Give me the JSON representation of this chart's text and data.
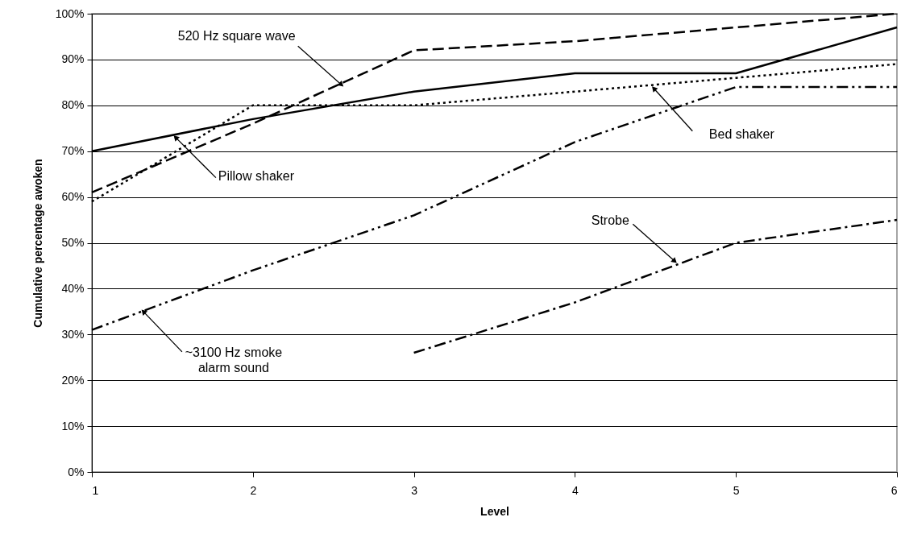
{
  "chart_data": {
    "type": "line",
    "xlabel": "Level",
    "ylabel": "Cumulative percentage awoken",
    "x": [
      1,
      2,
      3,
      4,
      5,
      6
    ],
    "xlim": [
      1,
      6
    ],
    "xticks": [
      1,
      2,
      3,
      4,
      5,
      6
    ],
    "ylim": [
      0,
      100
    ],
    "yticks": [
      {
        "value": 0,
        "label": "0%"
      },
      {
        "value": 10,
        "label": "10%"
      },
      {
        "value": 20,
        "label": "20%"
      },
      {
        "value": 30,
        "label": "30%"
      },
      {
        "value": 40,
        "label": "40%"
      },
      {
        "value": 50,
        "label": "50%"
      },
      {
        "value": 60,
        "label": "60%"
      },
      {
        "value": 70,
        "label": "70%"
      },
      {
        "value": 80,
        "label": "80%"
      },
      {
        "value": 90,
        "label": "90%"
      },
      {
        "value": 100,
        "label": "100%"
      }
    ],
    "grid": "y",
    "series": [
      {
        "color": "#000000",
        "line_style": "solid",
        "values": [
          70,
          77,
          83,
          87,
          87,
          97
        ]
      },
      {
        "color": "#000000",
        "line_style": "dashed",
        "values": [
          61,
          76,
          92,
          94,
          97,
          100
        ]
      },
      {
        "color": "#000000",
        "line_style": "dotted",
        "values": [
          59,
          80,
          80,
          83,
          86,
          89
        ]
      },
      {
        "color": "#000000",
        "line_style": "dashdotdot",
        "values": [
          31,
          44,
          56,
          72,
          84,
          84
        ]
      },
      {
        "color": "#000000",
        "line_style": "dashdot",
        "values": [
          null,
          null,
          26,
          37,
          50,
          55
        ]
      }
    ],
    "annotations": [
      {
        "text": "520 Hz square wave",
        "x": 2.55,
        "y": 84.5
      },
      {
        "text": "Pillow shaker",
        "x": 1.52,
        "y": 73
      },
      {
        "text": "Bed shaker",
        "x": 4.49,
        "y": 83.7
      },
      {
        "text": "~3100 Hz smoke\nalarm sound",
        "x": 1.32,
        "y": 35
      },
      {
        "text": "Strobe",
        "x": 4.62,
        "y": 46
      }
    ]
  }
}
